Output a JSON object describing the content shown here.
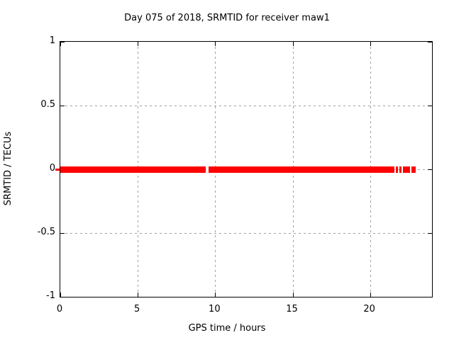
{
  "chart_data": {
    "type": "scatter",
    "title": "Day 075 of 2018, SRMTID for receiver maw1",
    "xlabel": "GPS time / hours",
    "ylabel": "SRMTID / TECUs",
    "xlim": [
      0,
      24
    ],
    "ylim": [
      -1,
      1
    ],
    "xticks": {
      "values": [
        0,
        5,
        10,
        15,
        20
      ],
      "labels": [
        "0",
        "5",
        "10",
        "15",
        "20"
      ]
    },
    "yticks": {
      "values": [
        -1,
        -0.5,
        0,
        0.5,
        1
      ],
      "labels": [
        "-1",
        "-0.5",
        "0",
        "0.5",
        "1"
      ]
    },
    "grid": true,
    "grid_style": "dashed",
    "legend": "none",
    "series": [
      {
        "name": "SRMTID",
        "marker": "dense-square-points",
        "y": 0,
        "x_segments": [
          [
            0,
            9.39
          ],
          [
            9.57,
            21.58
          ],
          [
            21.67,
            21.81
          ],
          [
            21.9,
            22.03
          ],
          [
            22.13,
            22.58
          ],
          [
            22.67,
            22.95
          ]
        ],
        "first_point_overflows_left_axis": true
      }
    ],
    "colors": {
      "points": "#ff0000",
      "grid": "#a0a0a0",
      "axis": "#000000",
      "text": "#000000",
      "background": "#ffffff"
    }
  }
}
